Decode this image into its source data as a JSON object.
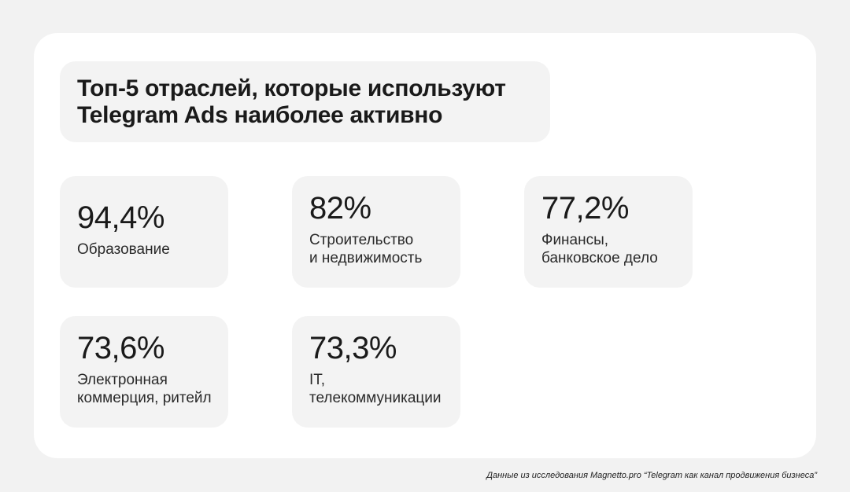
{
  "title": {
    "line1": "Топ-5 отраслей, которые используют",
    "line2": "Telegram Ads наиболее активно"
  },
  "stats": [
    {
      "value": "94,4%",
      "label_lines": [
        "Образование"
      ]
    },
    {
      "value": "82%",
      "label_lines": [
        "Строительство",
        "и недвижимость"
      ]
    },
    {
      "value": "77,2%",
      "label_lines": [
        "Финансы,",
        "банковское дело"
      ]
    },
    {
      "value": "73,6%",
      "label_lines": [
        "Электронная",
        "коммерция, ритейл"
      ]
    },
    {
      "value": "73,3%",
      "label_lines": [
        "IT,",
        "телекоммуникации"
      ]
    }
  ],
  "footnote": "Данные из исследования Magnetto.pro “Telegram как канал продвижения бизнеса”"
}
